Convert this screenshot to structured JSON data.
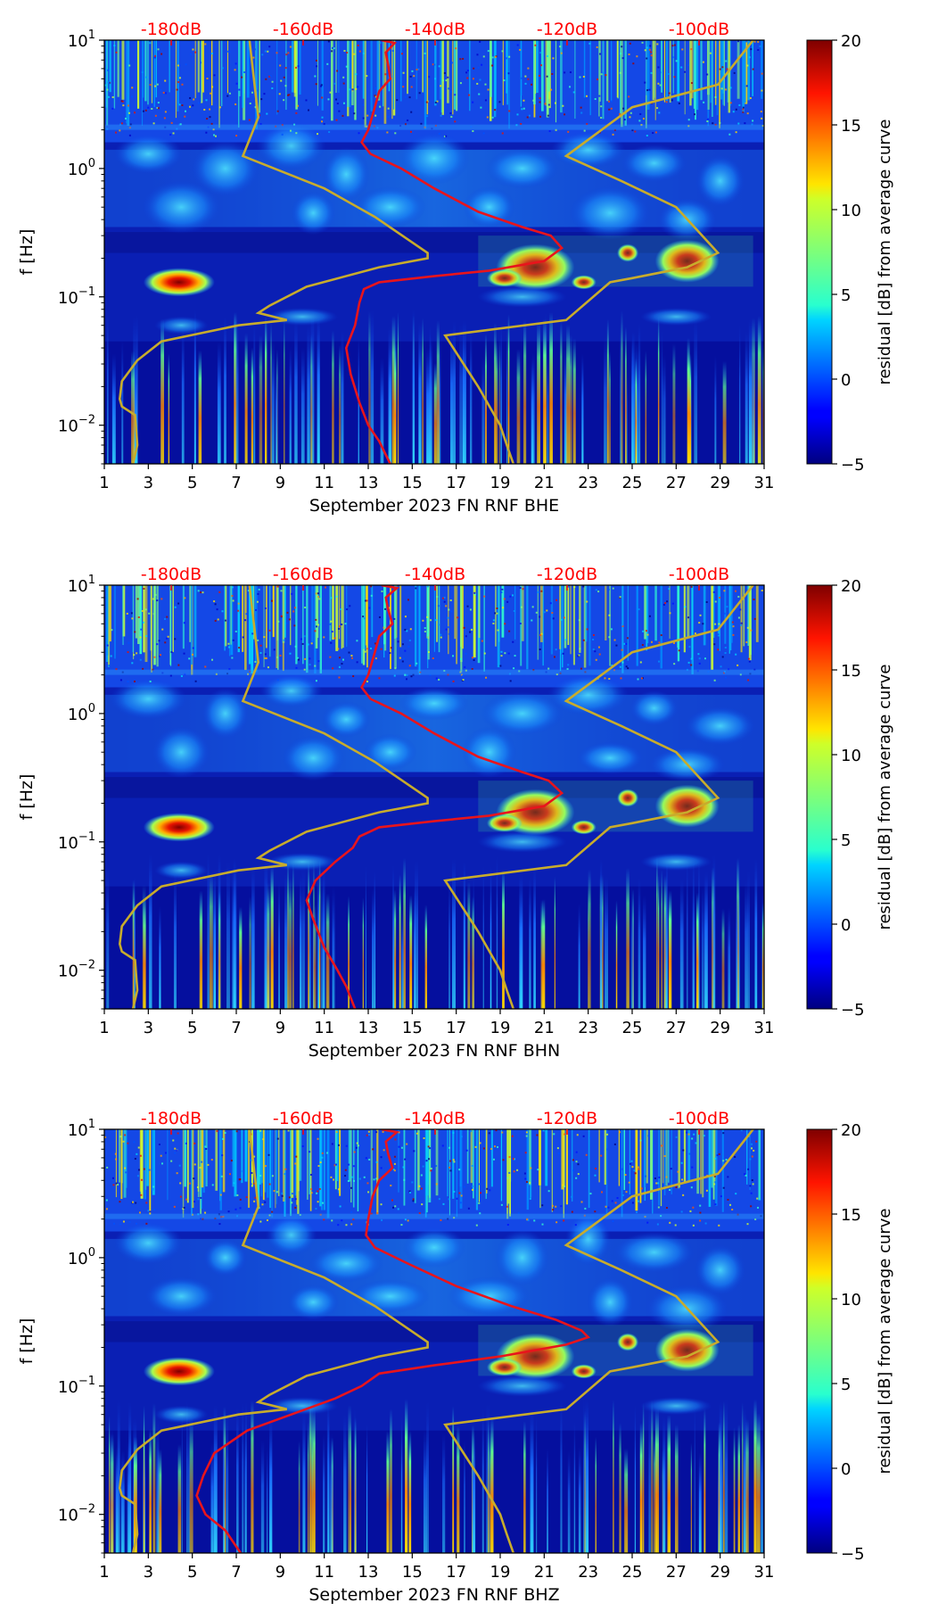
{
  "colors": {
    "red_curve": "#e8141c",
    "olive_curve": "#c8ac2c",
    "db_label": "#ff0000",
    "background_low": "#00008f",
    "ticks": "#000000"
  },
  "colorbar": {
    "label": "residual [dB] from average curve",
    "ticks": [
      "20",
      "15",
      "10",
      "5",
      "0",
      "−5"
    ],
    "vmin": -5,
    "vmax": 20
  },
  "chart_data": [
    {
      "type": "heatmap",
      "title": "",
      "xlabel": "September 2023 FN RNF  BHE",
      "ylabel": "f [Hz]",
      "x_ticks": [
        "1",
        "3",
        "5",
        "7",
        "9",
        "11",
        "13",
        "15",
        "17",
        "19",
        "21",
        "23",
        "25",
        "27",
        "29",
        "31"
      ],
      "xlim": [
        1,
        31
      ],
      "ylim_hz": [
        0.005,
        10
      ],
      "y_ticks": [
        {
          "base": "10",
          "exp": "1"
        },
        {
          "base": "10",
          "exp": "0"
        },
        {
          "base": "10",
          "exp": "−1"
        },
        {
          "base": "10",
          "exp": "−2"
        }
      ],
      "top_db_labels": [
        "-180dB",
        "-160dB",
        "-140dB",
        "-120dB",
        "-100dB"
      ],
      "red_curve": [
        [
          13.6,
          10
        ],
        [
          14.2,
          9.5
        ],
        [
          13.8,
          8
        ],
        [
          13.9,
          6.5
        ],
        [
          14.0,
          5
        ],
        [
          13.5,
          4
        ],
        [
          13.3,
          3
        ],
        [
          13.0,
          2
        ],
        [
          12.7,
          1.6
        ],
        [
          13.1,
          1.3
        ],
        [
          14.5,
          1.0
        ],
        [
          16.0,
          0.7
        ],
        [
          18.0,
          0.46
        ],
        [
          20.0,
          0.35
        ],
        [
          21.3,
          0.3
        ],
        [
          21.8,
          0.24
        ],
        [
          21.0,
          0.19
        ],
        [
          18.5,
          0.16
        ],
        [
          16.0,
          0.145
        ],
        [
          13.5,
          0.13
        ],
        [
          12.8,
          0.115
        ],
        [
          12.6,
          0.09
        ],
        [
          12.4,
          0.06
        ],
        [
          12.0,
          0.04
        ],
        [
          12.2,
          0.025
        ],
        [
          12.6,
          0.015
        ],
        [
          13.0,
          0.01
        ],
        [
          13.5,
          0.0075
        ],
        [
          14.0,
          0.005
        ]
      ]
    },
    {
      "type": "heatmap",
      "title": "",
      "xlabel": "September 2023 FN RNF  BHN",
      "ylabel": "f [Hz]",
      "x_ticks": [
        "1",
        "3",
        "5",
        "7",
        "9",
        "11",
        "13",
        "15",
        "17",
        "19",
        "21",
        "23",
        "25",
        "27",
        "29",
        "31"
      ],
      "xlim": [
        1,
        31
      ],
      "ylim_hz": [
        0.005,
        10
      ],
      "y_ticks": [
        {
          "base": "10",
          "exp": "1"
        },
        {
          "base": "10",
          "exp": "0"
        },
        {
          "base": "10",
          "exp": "−1"
        },
        {
          "base": "10",
          "exp": "−2"
        }
      ],
      "top_db_labels": [
        "-180dB",
        "-160dB",
        "-140dB",
        "-120dB",
        "-100dB"
      ],
      "red_curve": [
        [
          13.6,
          10
        ],
        [
          14.3,
          9.5
        ],
        [
          13.8,
          8
        ],
        [
          13.9,
          6.5
        ],
        [
          14.1,
          5
        ],
        [
          13.5,
          4
        ],
        [
          13.3,
          3
        ],
        [
          13.0,
          2
        ],
        [
          12.7,
          1.6
        ],
        [
          13.1,
          1.3
        ],
        [
          14.5,
          1.0
        ],
        [
          16.0,
          0.7
        ],
        [
          18.0,
          0.46
        ],
        [
          20.0,
          0.35
        ],
        [
          21.2,
          0.3
        ],
        [
          21.8,
          0.24
        ],
        [
          21.0,
          0.19
        ],
        [
          18.5,
          0.16
        ],
        [
          16.0,
          0.145
        ],
        [
          13.5,
          0.13
        ],
        [
          12.6,
          0.11
        ],
        [
          12.3,
          0.09
        ],
        [
          11.5,
          0.07
        ],
        [
          10.6,
          0.05
        ],
        [
          10.2,
          0.035
        ],
        [
          10.5,
          0.025
        ],
        [
          11.0,
          0.015
        ],
        [
          11.6,
          0.01
        ],
        [
          12.0,
          0.0075
        ],
        [
          12.4,
          0.005
        ]
      ]
    },
    {
      "type": "heatmap",
      "title": "",
      "xlabel": "September 2023 FN RNF  BHZ",
      "ylabel": "f [Hz]",
      "x_ticks": [
        "1",
        "3",
        "5",
        "7",
        "9",
        "11",
        "13",
        "15",
        "17",
        "19",
        "21",
        "23",
        "25",
        "27",
        "29",
        "31"
      ],
      "xlim": [
        1,
        31
      ],
      "ylim_hz": [
        0.005,
        10
      ],
      "y_ticks": [
        {
          "base": "10",
          "exp": "1"
        },
        {
          "base": "10",
          "exp": "0"
        },
        {
          "base": "10",
          "exp": "−1"
        },
        {
          "base": "10",
          "exp": "−2"
        }
      ],
      "top_db_labels": [
        "-180dB",
        "-160dB",
        "-140dB",
        "-120dB",
        "-100dB"
      ],
      "red_curve": [
        [
          13.6,
          10
        ],
        [
          14.3,
          9.5
        ],
        [
          13.8,
          8
        ],
        [
          13.9,
          6.5
        ],
        [
          14.1,
          5
        ],
        [
          13.5,
          4
        ],
        [
          13.2,
          3
        ],
        [
          13.0,
          2
        ],
        [
          12.9,
          1.5
        ],
        [
          13.3,
          1.2
        ],
        [
          14.8,
          0.9
        ],
        [
          17.0,
          0.6
        ],
        [
          19.5,
          0.42
        ],
        [
          21.5,
          0.33
        ],
        [
          22.7,
          0.27
        ],
        [
          23.0,
          0.24
        ],
        [
          22.0,
          0.21
        ],
        [
          19.0,
          0.17
        ],
        [
          16.0,
          0.145
        ],
        [
          13.5,
          0.125
        ],
        [
          12.7,
          0.1
        ],
        [
          11.5,
          0.08
        ],
        [
          9.5,
          0.06
        ],
        [
          7.5,
          0.045
        ],
        [
          6.0,
          0.03
        ],
        [
          5.5,
          0.02
        ],
        [
          5.2,
          0.014
        ],
        [
          5.6,
          0.01
        ],
        [
          6.5,
          0.0075
        ],
        [
          7.2,
          0.005
        ]
      ]
    }
  ],
  "olive_curve": [
    [
      7.6,
      10
    ],
    [
      8.0,
      2.5
    ],
    [
      7.3,
      1.25
    ],
    [
      11.0,
      0.7
    ],
    [
      13.3,
      0.42
    ],
    [
      15.7,
      0.22
    ],
    [
      15.7,
      0.2
    ],
    [
      13.5,
      0.17
    ],
    [
      10.2,
      0.12
    ],
    [
      8.5,
      0.085
    ],
    [
      8.0,
      0.075
    ],
    [
      9.3,
      0.066
    ],
    [
      7.1,
      0.06
    ],
    [
      3.6,
      0.045
    ],
    [
      2.5,
      0.032
    ],
    [
      1.8,
      0.022
    ],
    [
      1.7,
      0.016
    ],
    [
      1.8,
      0.014
    ],
    [
      2.4,
      0.012
    ],
    [
      2.5,
      0.007
    ],
    [
      2.3,
      0.005
    ]
  ],
  "olive_curve_2": [
    [
      30.5,
      10
    ],
    [
      28.9,
      4.5
    ],
    [
      25.0,
      3.0
    ],
    [
      22.0,
      1.25
    ],
    [
      24.5,
      0.8
    ],
    [
      27.0,
      0.5
    ],
    [
      28.9,
      0.22
    ],
    [
      27.5,
      0.17
    ],
    [
      25.0,
      0.14
    ],
    [
      24.0,
      0.13
    ],
    [
      22.0,
      0.066
    ],
    [
      16.5,
      0.05
    ],
    [
      18.0,
      0.02
    ],
    [
      19.0,
      0.01
    ],
    [
      19.3,
      0.007
    ],
    [
      19.6,
      0.005
    ]
  ]
}
